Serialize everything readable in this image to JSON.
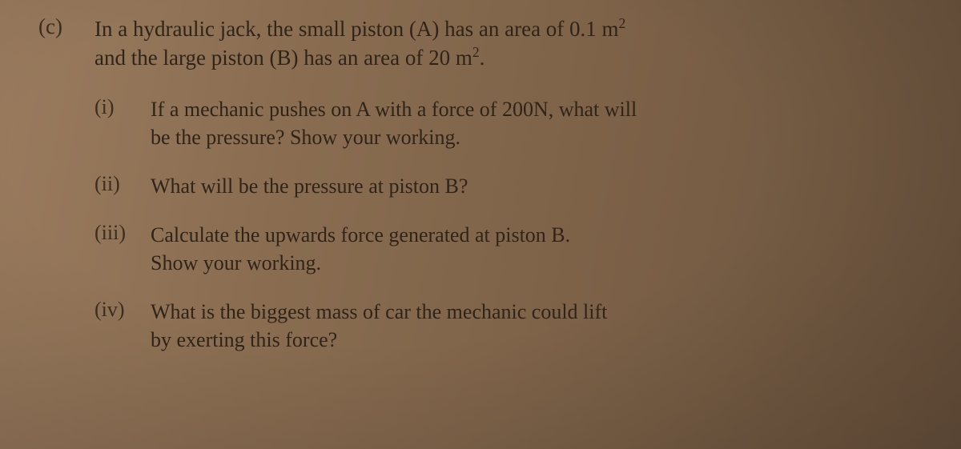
{
  "question": {
    "label": "(c)",
    "intro_line1": "In a hydraulic jack, the small piston (A) has an area of 0.1 m",
    "intro_sup1": "2",
    "intro_line2": "and the large piston (B) has an area of 20 m",
    "intro_sup2": "2",
    "intro_end": ".",
    "parts": [
      {
        "label": "(i)",
        "line1": "If a mechanic pushes on A with a force of 200N, what will",
        "line2": "be the pressure? Show your working."
      },
      {
        "label": "(ii)",
        "line1": "What will be the pressure at piston B?",
        "line2": ""
      },
      {
        "label": "(iii)",
        "line1": "Calculate the upwards force generated at piston B.",
        "line2": "Show your working."
      },
      {
        "label": "(iv)",
        "line1": "What is the biggest mass of car the mechanic could lift",
        "line2": "by exerting this force?"
      }
    ]
  },
  "style": {
    "text_color": "#2e2419",
    "bg_gradient_from": "#9a7b5e",
    "bg_gradient_to": "#6b533d",
    "main_fontsize": 27,
    "sub_fontsize": 26,
    "font_family": "Georgia, 'Times New Roman', serif"
  }
}
